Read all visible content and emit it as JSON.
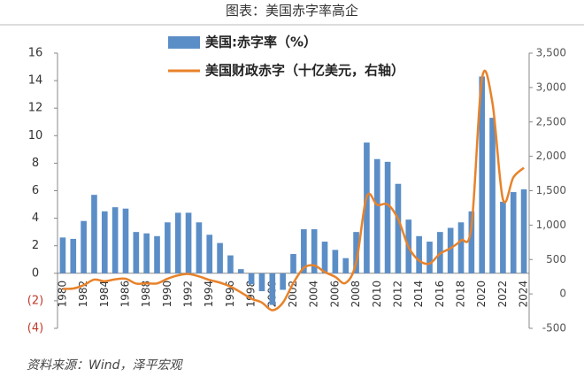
{
  "chart_data": {
    "type": "bar",
    "title": "图表：美国赤字率高企",
    "categories": [
      "1980",
      null,
      "1982",
      null,
      "1984",
      null,
      "1986",
      null,
      "1988",
      null,
      "1990",
      null,
      "1992",
      null,
      "1994",
      null,
      "1996",
      null,
      "1998",
      null,
      "2000",
      null,
      "2002",
      null,
      "2004",
      null,
      "2006",
      null,
      "2008",
      null,
      "2010",
      null,
      "2012",
      null,
      "2014",
      null,
      "2016",
      null,
      "2018",
      null,
      "2020",
      null,
      "2022",
      null,
      "2024"
    ],
    "series": [
      {
        "name": "美国:赤字率（%）",
        "type": "bar",
        "color": "#5b8ec7",
        "values": [
          2.6,
          2.5,
          3.8,
          5.7,
          4.5,
          4.8,
          4.7,
          3.0,
          2.9,
          2.7,
          3.7,
          4.4,
          4.4,
          3.7,
          2.8,
          2.2,
          1.3,
          0.3,
          -0.8,
          -1.3,
          -2.3,
          -1.2,
          1.4,
          3.2,
          3.2,
          2.3,
          1.7,
          1.1,
          3.0,
          9.5,
          8.3,
          8.1,
          6.5,
          3.9,
          2.7,
          2.3,
          3.0,
          3.3,
          3.7,
          4.5,
          14.3,
          11.3,
          5.2,
          5.9,
          6.1
        ]
      },
      {
        "name": "美国财政赤字（十亿美元，右轴）",
        "type": "line",
        "axis": "y2",
        "color": "#e8822a",
        "values": [
          74,
          79,
          128,
          208,
          185,
          212,
          221,
          150,
          155,
          153,
          221,
          269,
          290,
          255,
          203,
          164,
          107,
          22,
          -69,
          -126,
          -236,
          -128,
          158,
          378,
          413,
          318,
          248,
          161,
          459,
          1413,
          1294,
          1300,
          1087,
          680,
          485,
          442,
          585,
          665,
          779,
          984,
          3132,
          2775,
          1375,
          1695,
          1833
        ]
      }
    ],
    "ylim": [
      -4,
      16
    ],
    "yticks": [
      {
        "value": -4,
        "label": "(4)"
      },
      {
        "value": -2,
        "label": "(2)"
      },
      0,
      2,
      4,
      6,
      8,
      10,
      12,
      14,
      16
    ],
    "y2lim": [
      -500,
      3500
    ],
    "y2ticks": [
      -500,
      0,
      500,
      {
        "value": 1000,
        "label": "1,000"
      },
      {
        "value": 1500,
        "label": "1,500"
      },
      {
        "value": 2000,
        "label": "2,000"
      },
      {
        "value": 2500,
        "label": "2,500"
      },
      {
        "value": 3000,
        "label": "3,000"
      },
      {
        "value": 3500,
        "label": "3,500"
      }
    ],
    "source": "资料来源：Wind，泽平宏观"
  }
}
